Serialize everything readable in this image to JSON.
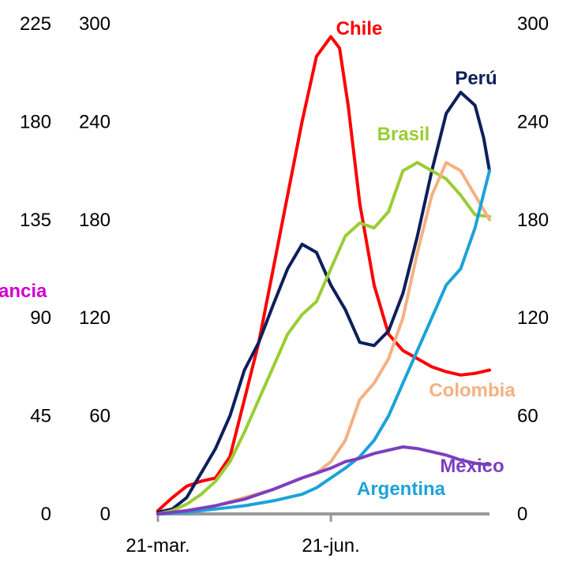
{
  "chart_data": {
    "type": "line",
    "title": "",
    "xlabel": "",
    "ylabel_left_outer": "ancia",
    "x_ticks": [
      "21-mar.",
      "21-jun."
    ],
    "x_range_days": [
      0,
      115
    ],
    "y_left_outer": {
      "ticks": [
        "0",
        "45",
        "90",
        "135",
        "180",
        "225"
      ],
      "ylim": [
        0,
        225
      ]
    },
    "y_left_inner": {
      "ticks": [
        "0",
        "60",
        "120",
        "180",
        "240",
        "300"
      ],
      "ylim": [
        0,
        300
      ]
    },
    "y_right": {
      "ticks": [
        "0",
        "60",
        "120",
        "180",
        "240",
        "300"
      ],
      "ylim": [
        0,
        300
      ]
    },
    "grid": false,
    "legend": "direct labels",
    "series": [
      {
        "name": "Chile",
        "color": "#ff0000",
        "x": [
          0,
          5,
          10,
          15,
          20,
          25,
          30,
          35,
          40,
          45,
          50,
          55,
          60,
          63,
          66,
          70,
          75,
          80,
          85,
          90,
          95,
          100,
          105,
          110,
          115
        ],
        "y": [
          2,
          10,
          17,
          20,
          22,
          35,
          70,
          105,
          150,
          195,
          240,
          280,
          292,
          285,
          250,
          190,
          140,
          110,
          100,
          95,
          90,
          87,
          85,
          86,
          88
        ]
      },
      {
        "name": "Perú",
        "color": "#0d1f5c",
        "x": [
          0,
          5,
          10,
          15,
          20,
          25,
          30,
          35,
          40,
          45,
          50,
          55,
          60,
          65,
          70,
          75,
          80,
          85,
          90,
          95,
          100,
          105,
          110,
          113,
          115
        ],
        "y": [
          1,
          3,
          10,
          25,
          40,
          60,
          88,
          105,
          128,
          150,
          165,
          160,
          140,
          125,
          105,
          103,
          112,
          135,
          170,
          210,
          245,
          258,
          250,
          230,
          210
        ]
      },
      {
        "name": "Brasil",
        "color": "#9acd32",
        "x": [
          0,
          5,
          10,
          15,
          20,
          25,
          30,
          35,
          40,
          45,
          50,
          55,
          60,
          65,
          70,
          75,
          80,
          85,
          90,
          95,
          100,
          105,
          110,
          115
        ],
        "y": [
          0,
          2,
          6,
          12,
          20,
          32,
          50,
          70,
          90,
          110,
          122,
          130,
          150,
          170,
          178,
          175,
          185,
          210,
          215,
          210,
          205,
          195,
          183,
          182
        ]
      },
      {
        "name": "Colombia",
        "color": "#f4b183",
        "x": [
          0,
          10,
          20,
          30,
          40,
          50,
          55,
          60,
          65,
          70,
          75,
          80,
          85,
          90,
          95,
          100,
          105,
          110,
          115
        ],
        "y": [
          0,
          2,
          5,
          10,
          15,
          22,
          25,
          32,
          45,
          70,
          80,
          95,
          120,
          160,
          195,
          215,
          210,
          195,
          180
        ]
      },
      {
        "name": "Argentina",
        "color": "#1ca3d8",
        "x": [
          0,
          10,
          20,
          30,
          40,
          50,
          55,
          60,
          65,
          70,
          75,
          80,
          85,
          90,
          95,
          100,
          105,
          110,
          115
        ],
        "y": [
          0,
          1,
          3,
          5,
          8,
          12,
          16,
          22,
          28,
          35,
          45,
          60,
          80,
          100,
          120,
          140,
          150,
          175,
          210
        ]
      },
      {
        "name": "México",
        "color": "#7b3fbf",
        "x": [
          0,
          10,
          20,
          30,
          40,
          50,
          55,
          60,
          65,
          70,
          75,
          80,
          85,
          90,
          95,
          100,
          105,
          110,
          115
        ],
        "y": [
          0,
          2,
          5,
          9,
          15,
          22,
          25,
          28,
          32,
          34,
          37,
          39,
          41,
          40,
          38,
          36,
          33,
          31,
          30
        ]
      }
    ]
  },
  "colors": {
    "axis": "#999999",
    "text": "#000000",
    "left_label": "#d000d0"
  }
}
